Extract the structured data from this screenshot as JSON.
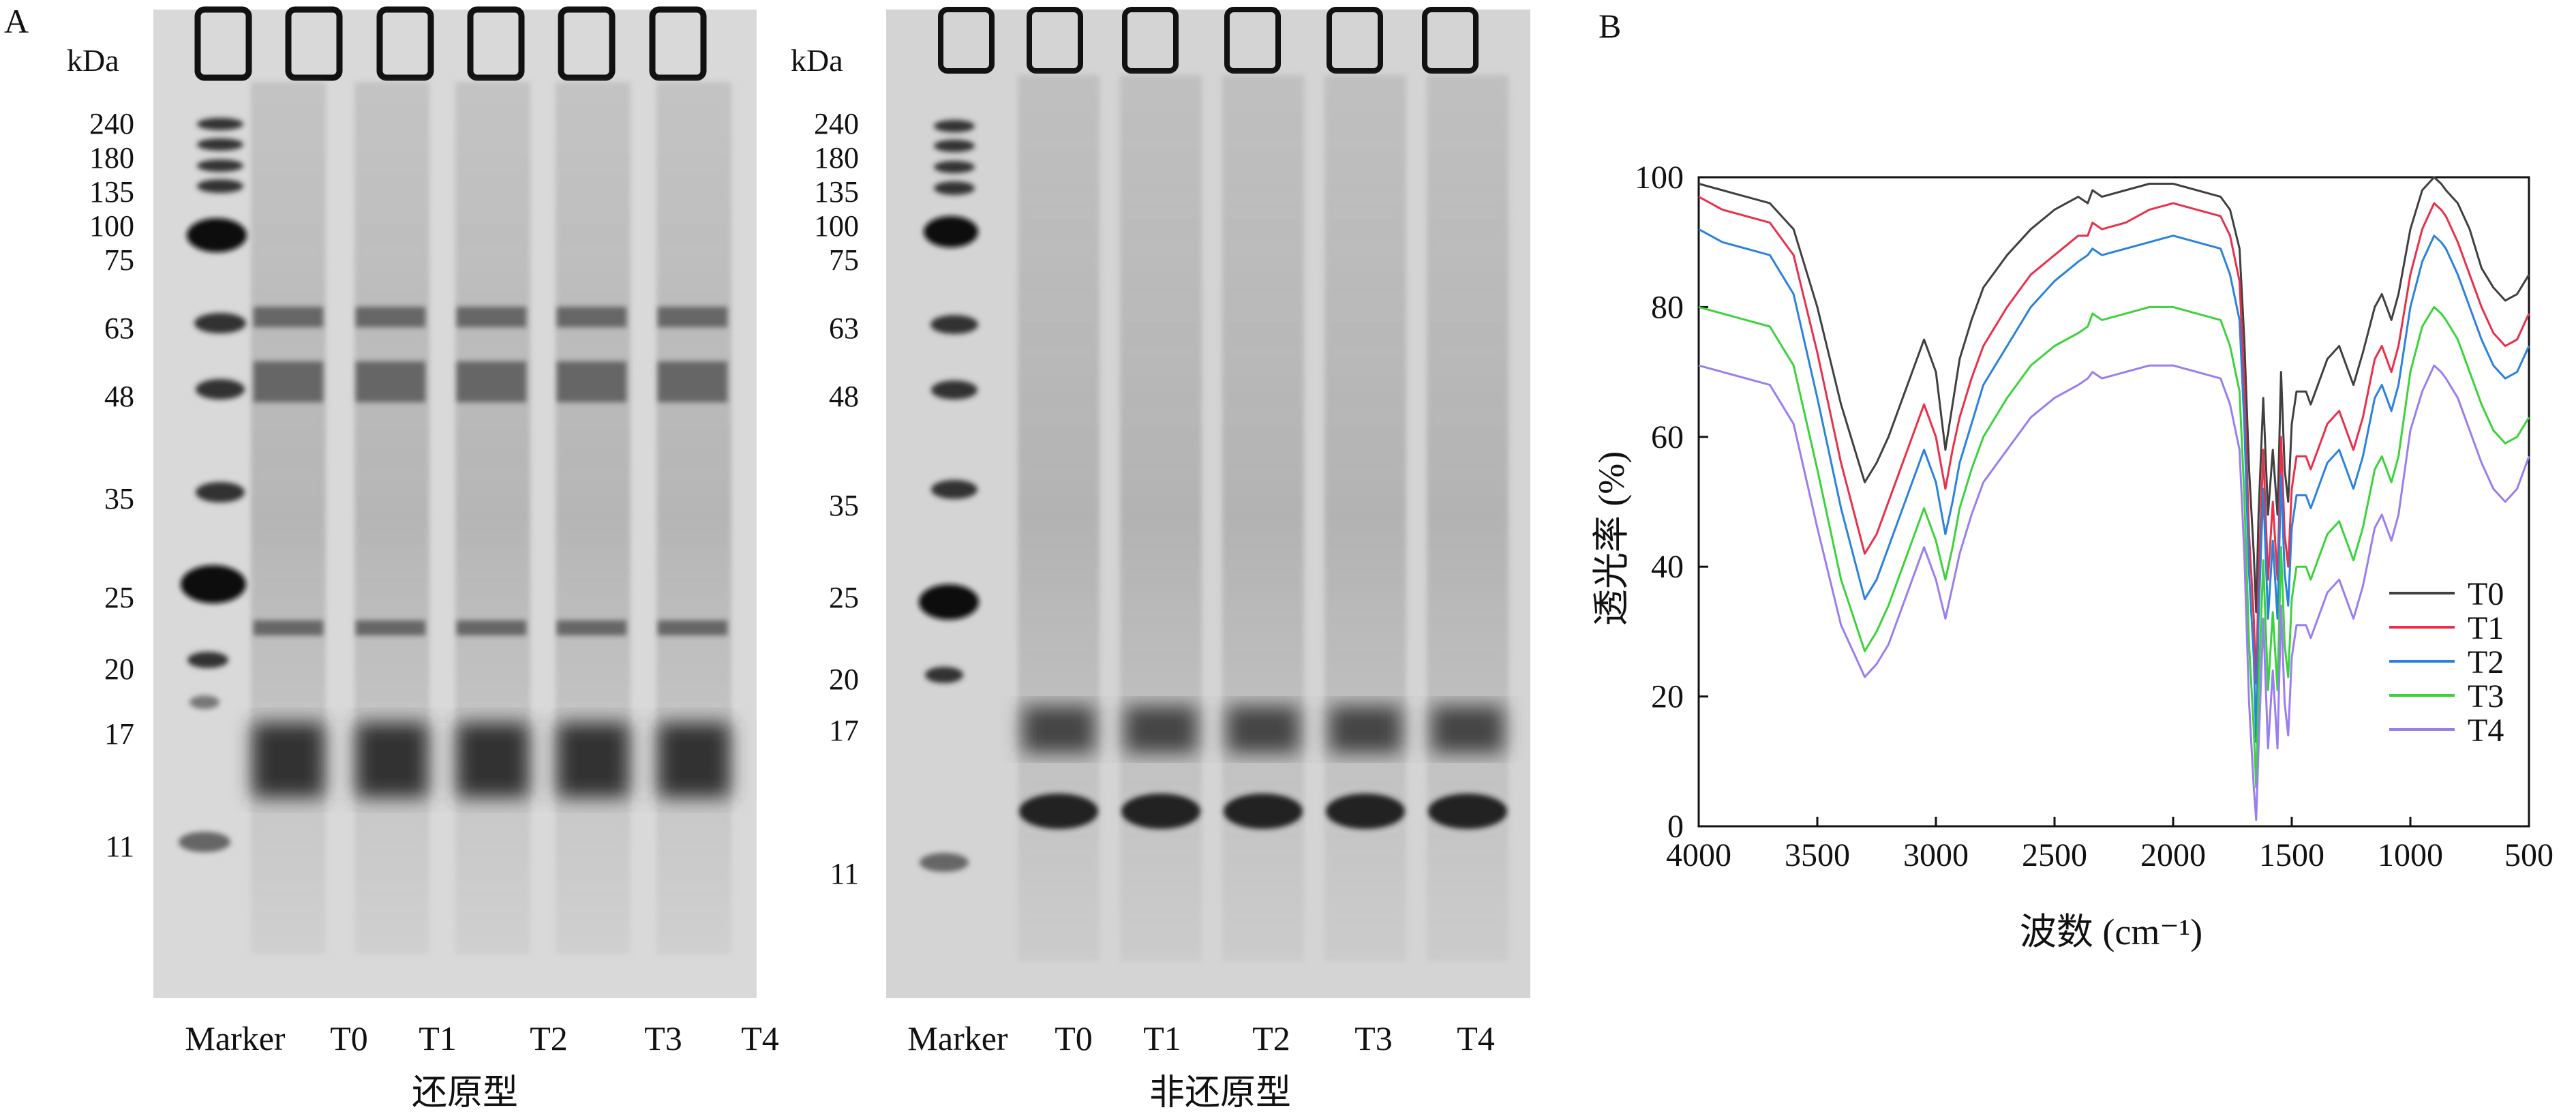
{
  "panel_a": {
    "label": "A",
    "kda_label": "kDa",
    "gels": [
      {
        "title": "还原型",
        "marker_labels": [
          "240",
          "180",
          "135",
          "100",
          "75",
          "63",
          "48",
          "35",
          "25",
          "20",
          "17",
          "11"
        ],
        "lane_labels": [
          "Marker",
          "T0",
          "T1",
          "T2",
          "T3",
          "T4"
        ]
      },
      {
        "title": "非还原型",
        "marker_labels": [
          "240",
          "180",
          "135",
          "100",
          "75",
          "63",
          "48",
          "35",
          "25",
          "20",
          "17",
          "11"
        ],
        "lane_labels": [
          "Marker",
          "T0",
          "T1",
          "T2",
          "T3",
          "T4"
        ]
      }
    ]
  },
  "panel_b": {
    "label": "B",
    "chart_data": {
      "type": "line",
      "xlabel": "波数 (cm⁻¹)",
      "ylabel": "透光率 (%)",
      "xlim": [
        4000,
        500
      ],
      "ylim": [
        0,
        100
      ],
      "x_reversed": true,
      "xticks": [
        "4000",
        "3500",
        "3000",
        "2500",
        "2000",
        "1500",
        "1000",
        "500"
      ],
      "yticks": [
        "0",
        "20",
        "40",
        "60",
        "80",
        "100"
      ],
      "legend_position": "bottom-right",
      "x": [
        4000,
        3900,
        3800,
        3700,
        3600,
        3500,
        3400,
        3300,
        3250,
        3200,
        3100,
        3050,
        3000,
        2960,
        2930,
        2900,
        2850,
        2800,
        2700,
        2600,
        2500,
        2400,
        2360,
        2340,
        2300,
        2200,
        2100,
        2000,
        1900,
        1800,
        1760,
        1720,
        1700,
        1680,
        1660,
        1650,
        1640,
        1620,
        1600,
        1580,
        1560,
        1545,
        1530,
        1515,
        1500,
        1480,
        1460,
        1440,
        1420,
        1400,
        1350,
        1300,
        1260,
        1240,
        1200,
        1150,
        1120,
        1100,
        1080,
        1050,
        1000,
        950,
        900,
        870,
        850,
        800,
        750,
        700,
        650,
        600,
        550,
        500
      ],
      "series": [
        {
          "name": "T0",
          "color": "#404040",
          "values": [
            99,
            98,
            97,
            96,
            92,
            80,
            65,
            53,
            56,
            60,
            70,
            75,
            70,
            58,
            65,
            72,
            78,
            83,
            88,
            92,
            95,
            97,
            96,
            98,
            97,
            98,
            99,
            99,
            98,
            97,
            95,
            89,
            75,
            55,
            42,
            33,
            48,
            66,
            48,
            58,
            48,
            70,
            55,
            50,
            62,
            67,
            67,
            67,
            65,
            67,
            72,
            74,
            70,
            68,
            73,
            80,
            82,
            80,
            78,
            82,
            92,
            98,
            100,
            99,
            98,
            96,
            92,
            86,
            83,
            81,
            82,
            85
          ]
        },
        {
          "name": "T1",
          "color": "#e8304a",
          "values": [
            97,
            95,
            94,
            93,
            88,
            73,
            56,
            42,
            45,
            50,
            60,
            65,
            60,
            52,
            58,
            63,
            69,
            74,
            80,
            85,
            88,
            91,
            91,
            93,
            92,
            93,
            95,
            96,
            95,
            94,
            91,
            84,
            68,
            45,
            32,
            22,
            38,
            58,
            38,
            50,
            38,
            60,
            45,
            40,
            52,
            57,
            57,
            57,
            55,
            57,
            62,
            64,
            60,
            58,
            63,
            72,
            74,
            72,
            70,
            74,
            85,
            92,
            96,
            95,
            94,
            90,
            85,
            80,
            76,
            74,
            75,
            79
          ]
        },
        {
          "name": "T2",
          "color": "#2a82dc",
          "values": [
            92,
            90,
            89,
            88,
            82,
            66,
            49,
            35,
            38,
            43,
            53,
            58,
            53,
            45,
            50,
            56,
            62,
            68,
            74,
            80,
            84,
            87,
            88,
            89,
            88,
            89,
            90,
            91,
            90,
            89,
            85,
            78,
            62,
            39,
            26,
            13,
            32,
            52,
            32,
            44,
            32,
            54,
            39,
            34,
            46,
            51,
            51,
            51,
            49,
            51,
            56,
            58,
            54,
            52,
            57,
            66,
            68,
            66,
            64,
            68,
            80,
            87,
            91,
            90,
            89,
            85,
            80,
            75,
            71,
            69,
            70,
            74
          ]
        },
        {
          "name": "T3",
          "color": "#3cd23c",
          "values": [
            80,
            79,
            78,
            77,
            71,
            55,
            38,
            27,
            30,
            34,
            44,
            49,
            44,
            38,
            43,
            49,
            55,
            60,
            66,
            71,
            74,
            76,
            77,
            79,
            78,
            79,
            80,
            80,
            79,
            78,
            74,
            67,
            51,
            28,
            15,
            6,
            21,
            41,
            21,
            33,
            21,
            43,
            28,
            23,
            35,
            40,
            40,
            40,
            38,
            40,
            45,
            47,
            43,
            41,
            46,
            55,
            57,
            55,
            53,
            57,
            70,
            77,
            80,
            79,
            78,
            75,
            70,
            65,
            61,
            59,
            60,
            63
          ]
        },
        {
          "name": "T4",
          "color": "#9a7ef0",
          "values": [
            71,
            70,
            69,
            68,
            62,
            46,
            31,
            23,
            25,
            28,
            38,
            43,
            38,
            32,
            37,
            42,
            48,
            53,
            58,
            63,
            66,
            68,
            69,
            70,
            69,
            70,
            71,
            71,
            70,
            69,
            65,
            58,
            42,
            19,
            6,
            1,
            12,
            32,
            12,
            24,
            12,
            34,
            19,
            14,
            26,
            31,
            31,
            31,
            29,
            31,
            36,
            38,
            34,
            32,
            37,
            46,
            48,
            46,
            44,
            48,
            61,
            67,
            71,
            70,
            69,
            66,
            61,
            56,
            52,
            50,
            52,
            57
          ]
        }
      ]
    }
  }
}
